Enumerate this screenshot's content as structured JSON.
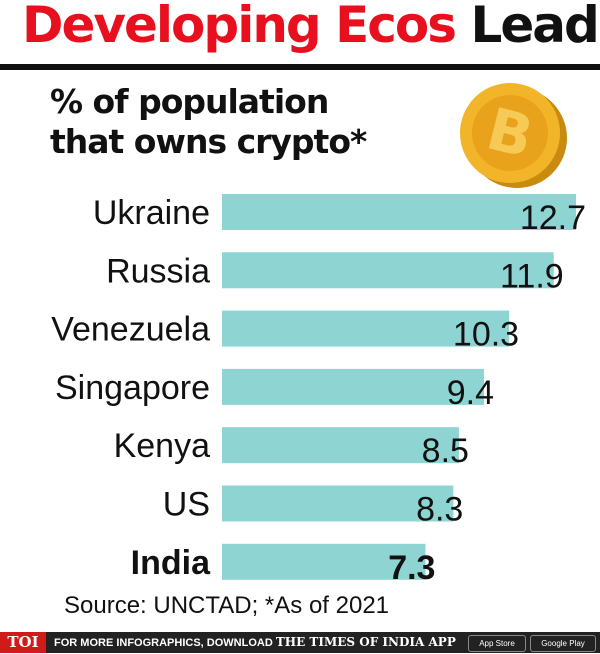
{
  "title": {
    "part1": "Developing Ecos",
    "part2": "Lead"
  },
  "chart_data": {
    "type": "bar",
    "orientation": "horizontal",
    "title": "% of population that owns crypto*",
    "categories": [
      "Ukraine",
      "Russia",
      "Venezuela",
      "Singapore",
      "Kenya",
      "US",
      "India"
    ],
    "values": [
      12.7,
      11.9,
      10.3,
      9.4,
      8.5,
      8.3,
      7.3
    ],
    "value_labels": [
      "12.7",
      "11.9",
      "10.3",
      "9.4",
      "8.5",
      "8.3",
      "7.3"
    ],
    "highlight": "India",
    "xlim": [
      0,
      12.7
    ],
    "grid": false,
    "bar_color": "#8dd4d2"
  },
  "source": "Source: UNCTAD; *As of 2021",
  "footer": {
    "logo": "TOI",
    "text": "FOR MORE INFOGRAPHICS, DOWNLOAD",
    "brand": "THE TIMES OF INDIA APP",
    "appstore": "App Store",
    "googleplay": "Google Play"
  },
  "colors": {
    "title_red": "#e8101e",
    "coin": "#f2b52a",
    "footer_bg": "#222222"
  }
}
